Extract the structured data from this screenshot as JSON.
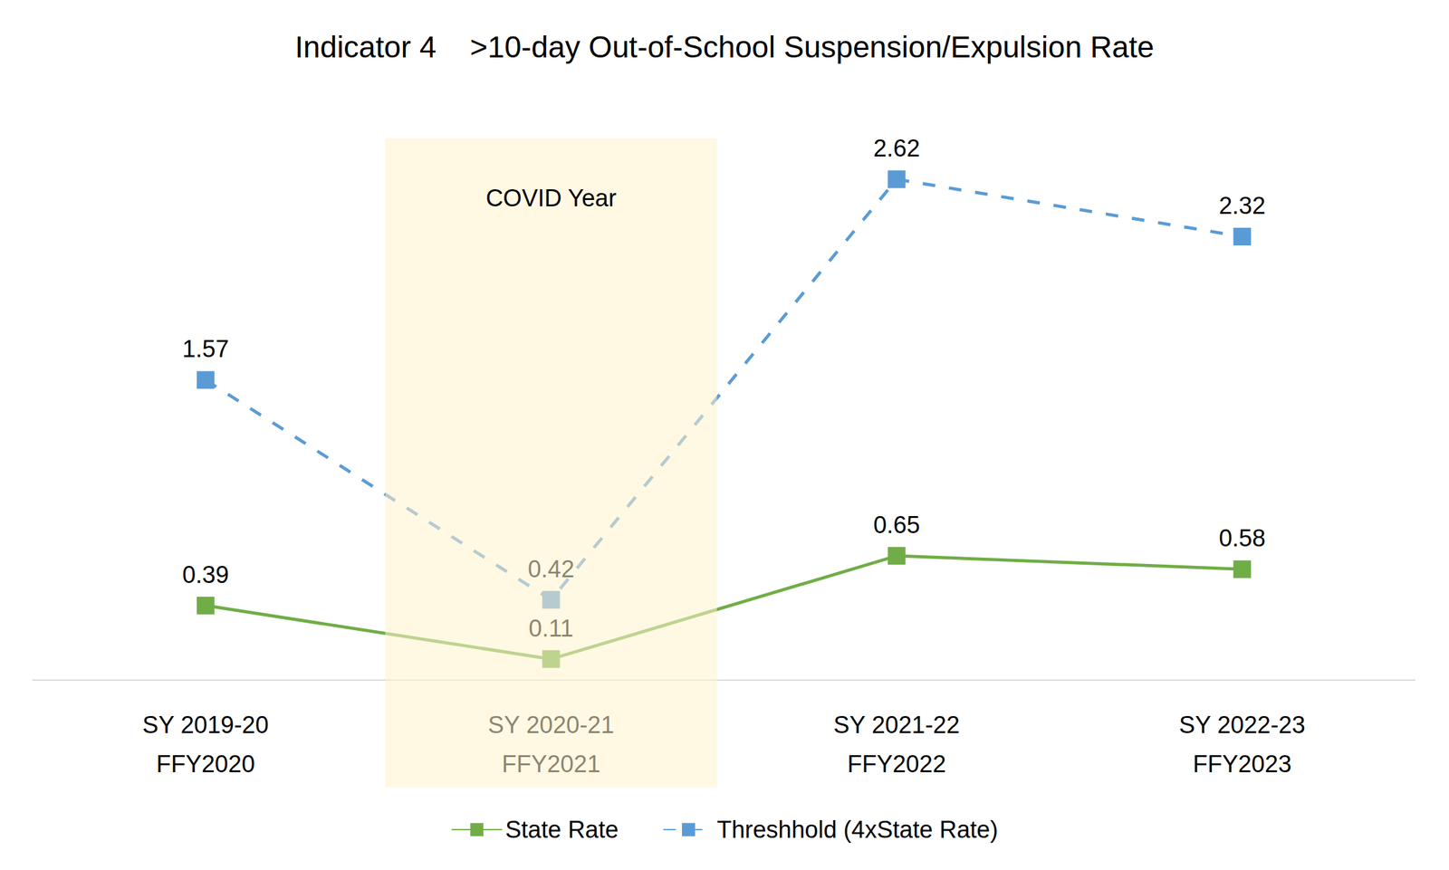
{
  "chart_data": {
    "type": "line",
    "title": "Indicator 4    >10-day Out-of-School Suspension/Expulsion Rate",
    "categories": [
      "SY 2019-20\nFFY2020",
      "SY 2020-21\nFFY2021",
      "SY 2021-22\nFFY2022",
      "SY 2022-23\nFFY2023"
    ],
    "series": [
      {
        "name": "State Rate",
        "color": "#70ad47",
        "marker": "square",
        "line_style": "solid",
        "values": [
          0.39,
          0.11,
          0.65,
          0.58
        ]
      },
      {
        "name": "Threshhold (4xState Rate)",
        "color": "#5b9bd5",
        "marker": "square",
        "line_style": "dashed",
        "values": [
          1.57,
          0.42,
          2.62,
          2.32
        ]
      }
    ],
    "ylim": [
      0,
      3
    ],
    "yticks": [
      0,
      0.5,
      1,
      1.5,
      2,
      2.5,
      3
    ],
    "grid": false,
    "legend": "bottom",
    "data_labels": true,
    "tick_labels": "x",
    "annotation": {
      "text": "COVID Year",
      "category": "SY 2020-21\nFFY2021"
    }
  }
}
